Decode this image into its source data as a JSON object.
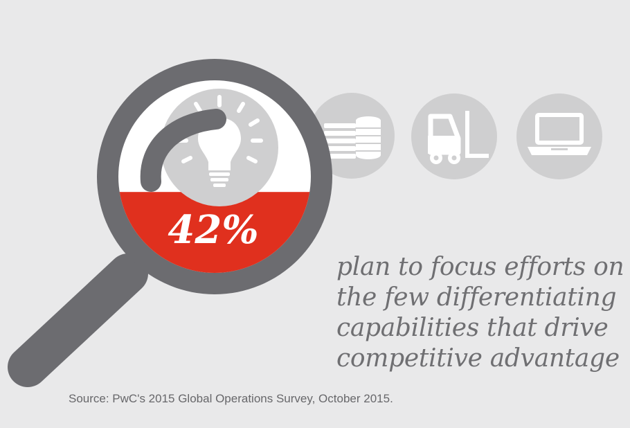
{
  "stat": {
    "percent": "42%",
    "fill_fraction": 0.42
  },
  "statement": {
    "lines": [
      "plan to focus efforts on",
      "the few differentiating",
      "capabilities that drive",
      "competitive advantage"
    ]
  },
  "source": "Source:  PwC's 2015 Global Operations Survey, October 2015.",
  "icons": [
    "lightbulb-icon",
    "coins-icon",
    "forklift-icon",
    "laptop-icon",
    "magnifying-glass-icon"
  ],
  "colors": {
    "background": "#e9e9ea",
    "magnifier": "#6c6c70",
    "accent_red": "#e0301e",
    "icon_circle": "#cfcfd0",
    "text_gray": "#6f6f72"
  }
}
